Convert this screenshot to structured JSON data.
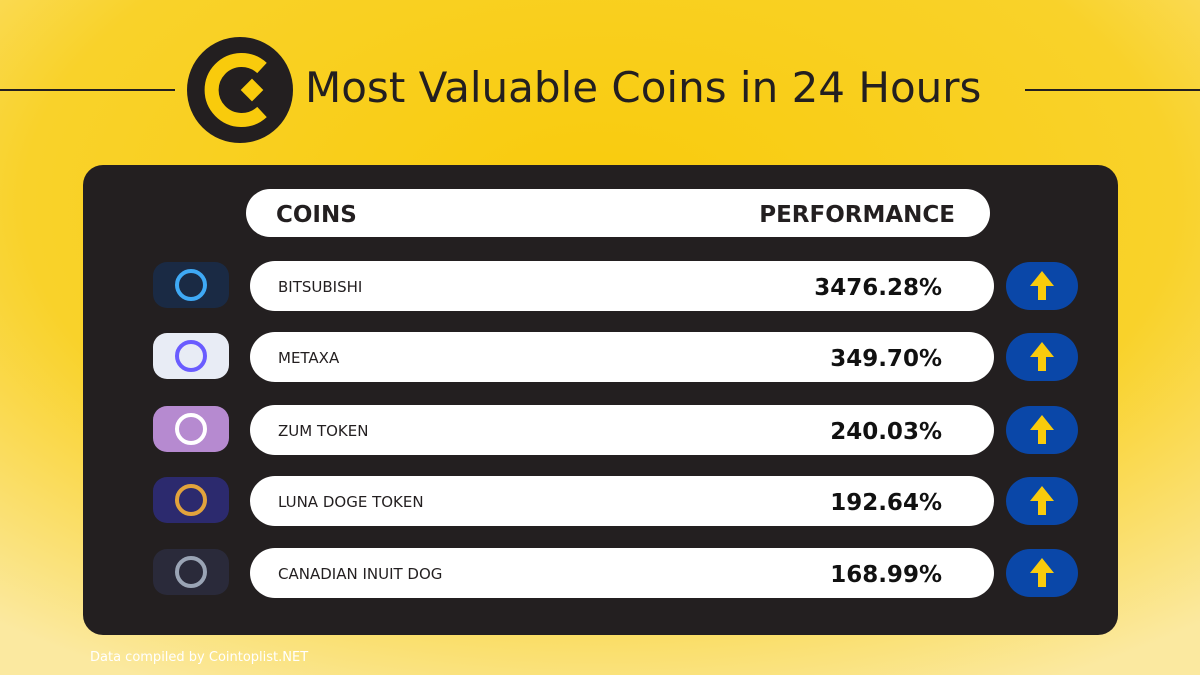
{
  "header": {
    "title": "Most Valuable Coins in 24 Hours"
  },
  "table": {
    "columns": [
      "COINS",
      "PERFORMANCE"
    ],
    "rows": [
      [
        "BITSUBISHI",
        "3476.28%"
      ],
      [
        "METAXA",
        "349.70%"
      ],
      [
        "ZUM TOKEN",
        "240.03%"
      ],
      [
        "LUNA DOGE TOKEN",
        "192.64%"
      ],
      [
        "CANADIAN INUIT DOG",
        "168.99%"
      ]
    ]
  },
  "footer": {
    "source": "Data compiled by Cointoplist.NET"
  }
}
